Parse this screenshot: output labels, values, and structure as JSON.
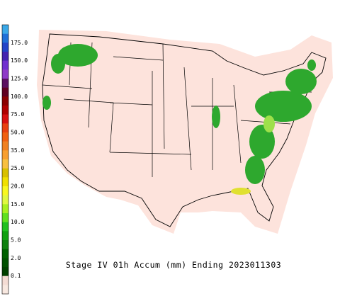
{
  "legend": {
    "labels": [
      "175.0",
      "150.0",
      "125.0",
      "100.0",
      "75.0",
      "50.0",
      "35.0",
      "25.0",
      "20.0",
      "15.0",
      "10.0",
      "5.0",
      "2.0",
      "0.1"
    ],
    "colors": [
      "#3aa8e8",
      "#1f70d8",
      "#2244c8",
      "#4424b0",
      "#7030d0",
      "#8e3ac8",
      "#5a1060",
      "#600020",
      "#8b0000",
      "#b00000",
      "#d81010",
      "#e84010",
      "#f06010",
      "#f08020",
      "#f8a030",
      "#f8c040",
      "#d8c000",
      "#f0e000",
      "#f8f820",
      "#e0f840",
      "#a8f020",
      "#60e020",
      "#20c020",
      "#10a010",
      "#108010",
      "#006000",
      "#005000",
      "#004000",
      "#f4dcd4",
      "#f8e8e0"
    ]
  },
  "title": "Stage IV 01h Accum (mm) Ending 2023011303"
}
